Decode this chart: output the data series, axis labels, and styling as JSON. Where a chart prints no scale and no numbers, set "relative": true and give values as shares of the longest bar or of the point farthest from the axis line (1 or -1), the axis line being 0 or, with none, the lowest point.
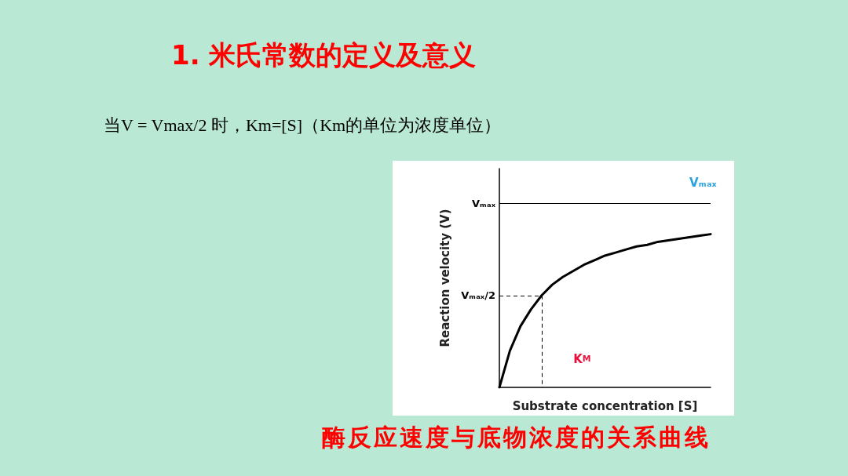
{
  "chart_data": {
    "type": "line",
    "title": "1. 米氏常数的定义及意义",
    "subtitle": "当V = Vmax/2 时，Km=[S]（Km的单位为浓度单位）",
    "xlabel": "Substrate concentration [S]",
    "ylabel": "Reaction velocity (V)",
    "annotations": [
      {
        "text": "Vₘₐₓ",
        "y": 1.2
      },
      "K$_{M}$",
      "酶反应速度与底物浓度的关系曲线"
    ],
    "relative": true,
    "categories": [
      null,
      null,
      null,
      null,
      null,
      null,
      null,
      null,
      null,
      null,
      null,
      null,
      null,
      null,
      null,
      null,
      null,
      null,
      null,
      null,
      null
    ],
    "series": [
      {
        "color": "#000000",
        "values": [
          0,
          0.24,
          0.4,
          0.51,
          0.6,
          0.67,
          0.72,
          0.76,
          0.8,
          0.83,
          0.86,
          0.88,
          0.9,
          0.92,
          0.93,
          0.95,
          0.96,
          0.97,
          0.98,
          0.99,
          1
        ]
      }
    ],
    "ref_lines": [
      {
        "axis": "y",
        "value": 1.2,
        "label": "Vₘₐₓ",
        "color": "#000000"
      },
      {
        "axis": "y",
        "value": 0.6,
        "label": "Vₘₐₓ/2",
        "color": "#000000",
        "line_style": "dashed"
      }
    ],
    "grid": false,
    "marker": "none",
    "line_style": "solid"
  }
}
